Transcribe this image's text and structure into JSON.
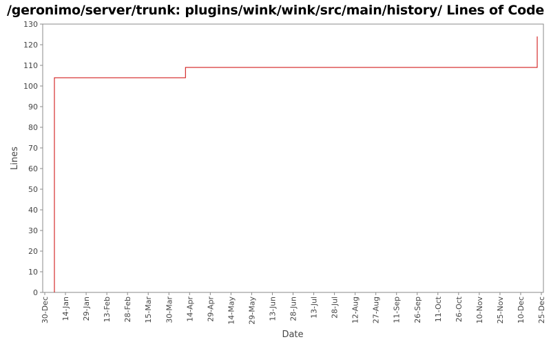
{
  "chart_data": {
    "type": "line",
    "title": "/geronimo/server/trunk: plugins/wink/wink/src/main/history/ Lines of Code",
    "xlabel": "Date",
    "ylabel": "Lines",
    "ylim": [
      0,
      130
    ],
    "y_ticks": [
      0,
      10,
      20,
      30,
      40,
      50,
      60,
      70,
      80,
      90,
      100,
      110,
      120,
      130
    ],
    "x_range": [
      "30-Dec",
      "25-Dec"
    ],
    "x_ticks": [
      "30-Dec",
      "14-Jan",
      "29-Jan",
      "13-Feb",
      "28-Feb",
      "15-Mar",
      "30-Mar",
      "14-Apr",
      "29-Apr",
      "14-May",
      "29-May",
      "13-Jun",
      "28-Jun",
      "13-Jul",
      "28-Jul",
      "12-Aug",
      "27-Aug",
      "11-Sep",
      "26-Sep",
      "11-Oct",
      "26-Oct",
      "10-Nov",
      "25-Nov",
      "10-Dec",
      "25-Dec"
    ],
    "grid": false,
    "legend": "none",
    "line_style": "step",
    "series": [
      {
        "color": "#cc0000",
        "points": [
          {
            "x": "06-Jan",
            "y": 0
          },
          {
            "x": "06-Jan",
            "y": 104
          },
          {
            "x": "11-Apr",
            "y": 104
          },
          {
            "x": "11-Apr",
            "y": 109
          },
          {
            "x": "22-Dec",
            "y": 109
          },
          {
            "x": "22-Dec",
            "y": 124
          }
        ]
      }
    ]
  }
}
